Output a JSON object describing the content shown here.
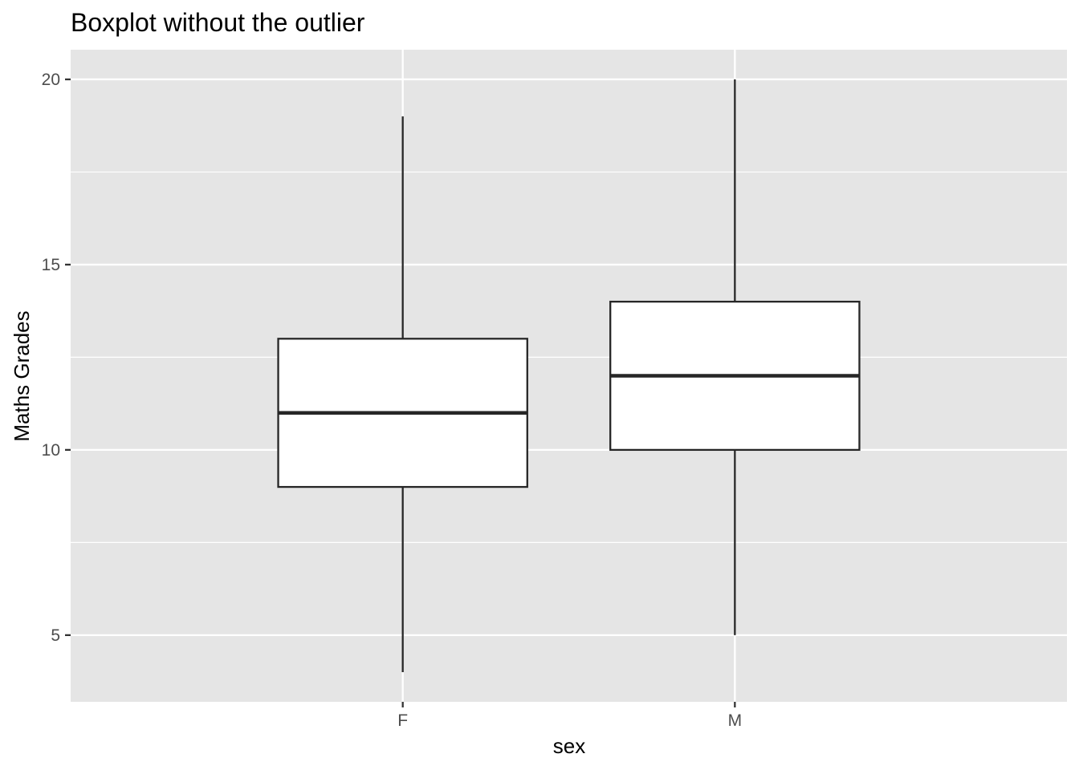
{
  "chart_data": {
    "type": "boxplot",
    "title": "Boxplot without the outlier",
    "xlabel": "sex",
    "ylabel": "Maths Grades",
    "categories": [
      "F",
      "M"
    ],
    "boxes": [
      {
        "category": "F",
        "whisker_low": 4,
        "q1": 9,
        "median": 11,
        "q3": 13,
        "whisker_high": 19
      },
      {
        "category": "M",
        "whisker_low": 5,
        "q1": 10,
        "median": 12,
        "q3": 14,
        "whisker_high": 20
      }
    ],
    "yticks": [
      5,
      10,
      15,
      20
    ],
    "ylim": [
      3.2,
      20.8
    ],
    "grid": true,
    "colors": {
      "panel": "#E5E5E5",
      "gridline": "#FFFFFF",
      "box_fill": "#FFFFFF",
      "box_stroke": "#262626",
      "tick_text": "#4D4D4D"
    }
  }
}
